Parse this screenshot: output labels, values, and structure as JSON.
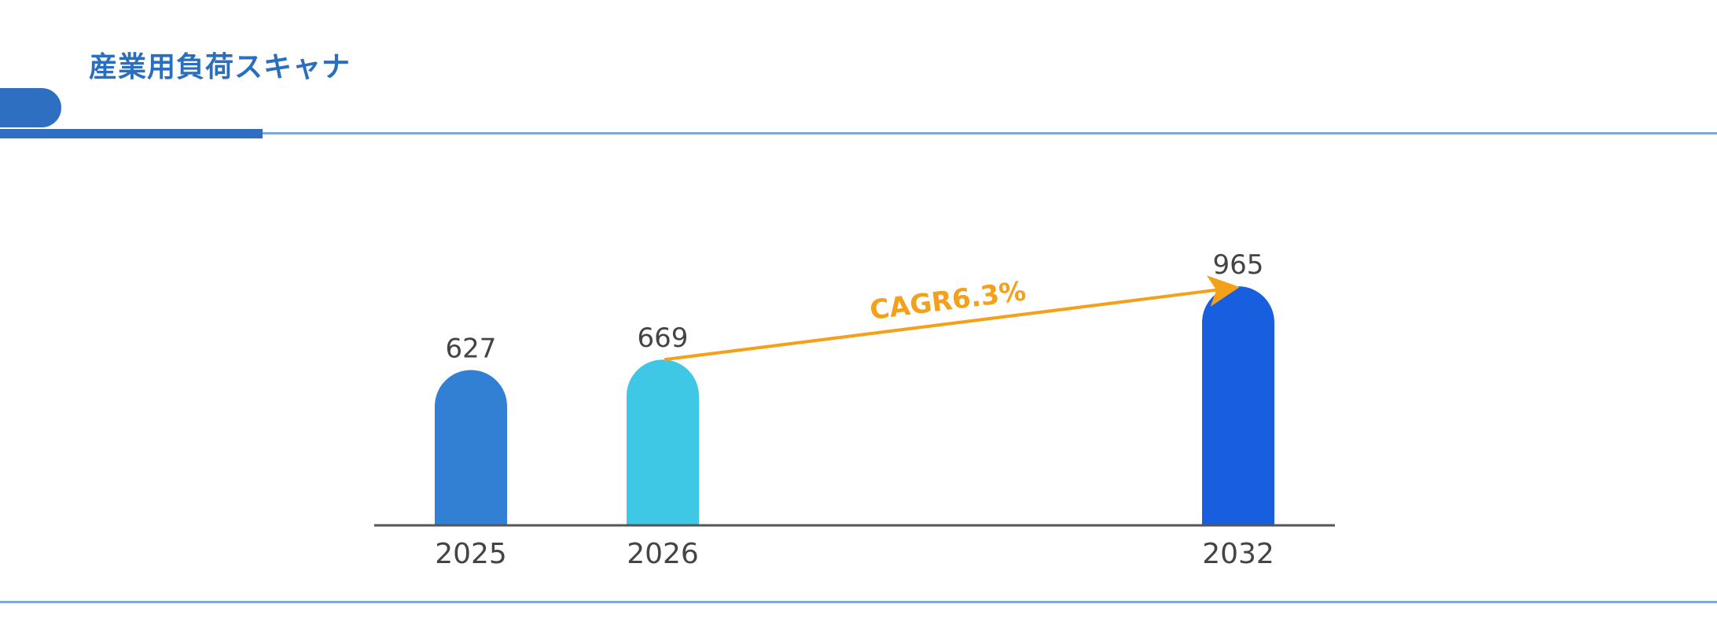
{
  "header": {
    "title": "産業用負荷スキャナ"
  },
  "colors": {
    "title": "#2a6fbf",
    "accent": "#2f6fc2",
    "rule": "#7fa9dc",
    "arrow": "#f5a01a",
    "axis": "#555555"
  },
  "chart_data": {
    "type": "bar",
    "categories": [
      "2025",
      "2026",
      "2032"
    ],
    "values": [
      627,
      669,
      965
    ],
    "bar_colors": [
      "#3180d4",
      "#3ec8e6",
      "#185fe0"
    ],
    "title": "",
    "xlabel": "",
    "ylabel": "",
    "ylim": [
      0,
      965
    ],
    "grid": false,
    "annotation": {
      "text": "CAGR6.3%",
      "from_category": "2026",
      "to_category": "2032"
    }
  }
}
